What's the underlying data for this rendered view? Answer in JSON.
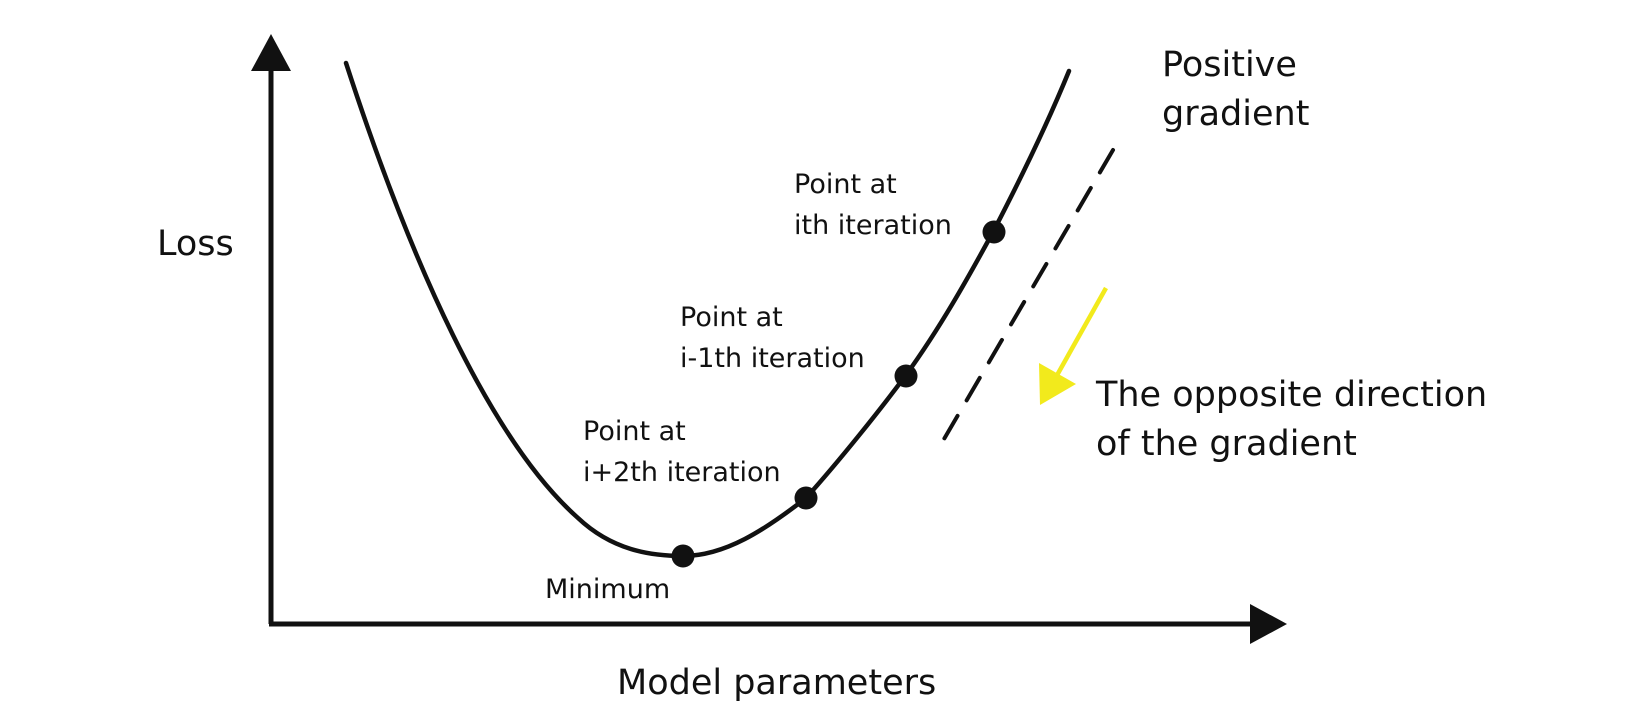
{
  "axes": {
    "y_label": "Loss",
    "x_label": "Model parameters"
  },
  "annotations": {
    "positive_gradient": [
      "Positive",
      "gradient"
    ],
    "opposite_direction": [
      "The opposite direction",
      "of the gradient"
    ],
    "point_i": [
      "Point at",
      "ith iteration"
    ],
    "point_i_minus_1": [
      "Point at",
      "i-1th iteration"
    ],
    "point_i_plus_2": [
      "Point at",
      "i+2th iteration"
    ],
    "minimum": "Minimum"
  },
  "colors": {
    "line": "#111111",
    "arrow_highlight": "#f2ea1c",
    "background": "#ffffff"
  }
}
